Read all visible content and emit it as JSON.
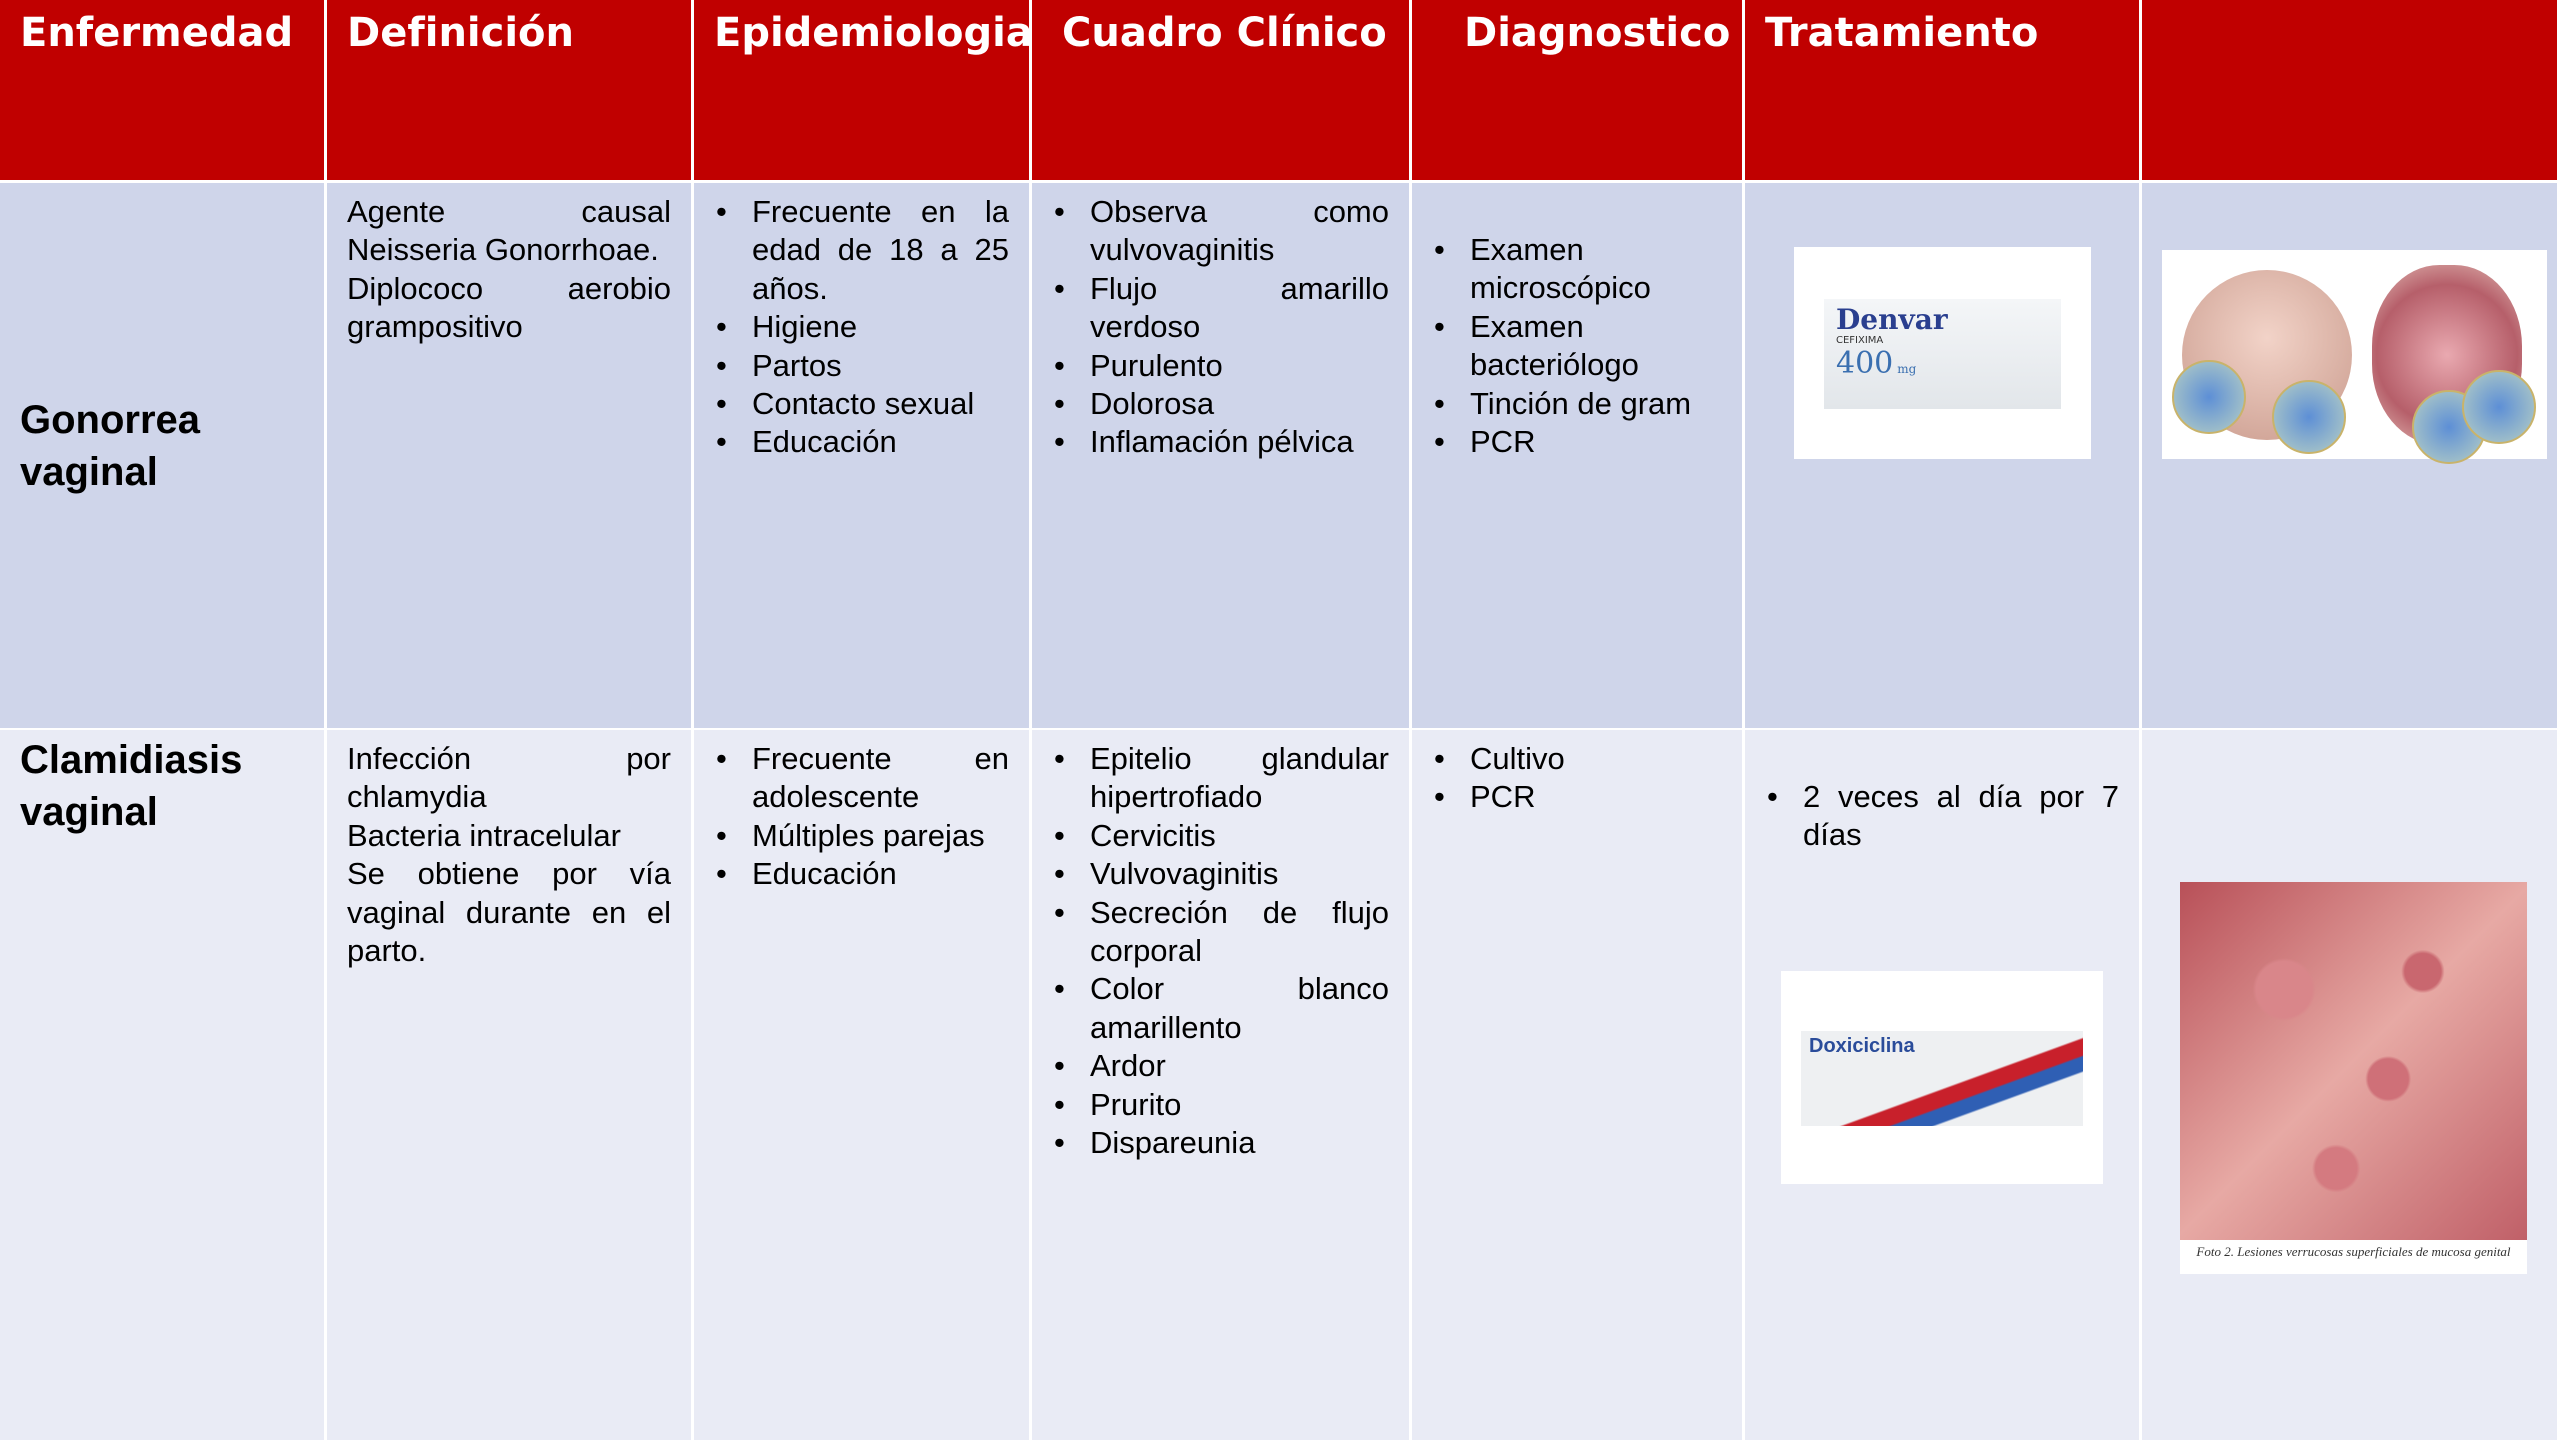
{
  "header": {
    "columns": [
      "Enfermedad",
      "Definición",
      "Epidemiologia",
      "Cuadro Clínico",
      "Diagnostico",
      "Tratamiento"
    ]
  },
  "rows": [
    {
      "disease": "Gonorrea vaginal",
      "definition": [
        "Agente causal Neisseria Gonorrhoae.",
        "Diplococo aerobio grampositivo"
      ],
      "epidemiology": [
        "Frecuente en la edad de 18 a 25 años.",
        "Higiene",
        "Partos",
        "Contacto sexual",
        "Educación"
      ],
      "clinical": [
        "Observa como vulvovaginitis",
        "Flujo amarillo verdoso",
        "Purulento",
        "Dolorosa",
        "Inflamación pélvica"
      ],
      "diagnosis": [
        "Examen microscópico",
        "Examen bacteriólogo",
        "Tinción de gram",
        "PCR"
      ],
      "drug": {
        "brand": "Denvar",
        "generic": "CEFIXIMA",
        "dose": "400",
        "unit": "mg"
      }
    },
    {
      "disease": "Clamidiasis vaginal",
      "definition": [
        "Infección por chlamydia",
        "Bacteria intracelular",
        "Se obtiene por vía vaginal durante en el parto."
      ],
      "epidemiology": [
        "Frecuente en adolescente",
        "Múltiples parejas",
        "Educación"
      ],
      "clinical": [
        "Epitelio glandular hipertrofiado",
        "Cervicitis",
        "Vulvovaginitis",
        "Secreción de flujo corporal",
        "Color blanco amarillento",
        "Ardor",
        "Prurito",
        "Dispareunia"
      ],
      "diagnosis": [
        "Cultivo",
        "PCR"
      ],
      "treatment": [
        "2 veces al día por 7 días"
      ],
      "drug": {
        "brand": "Doxiciclina"
      },
      "photo_caption": "Foto 2. Lesiones verrucosas superficiales de mucosa genital"
    }
  ]
}
